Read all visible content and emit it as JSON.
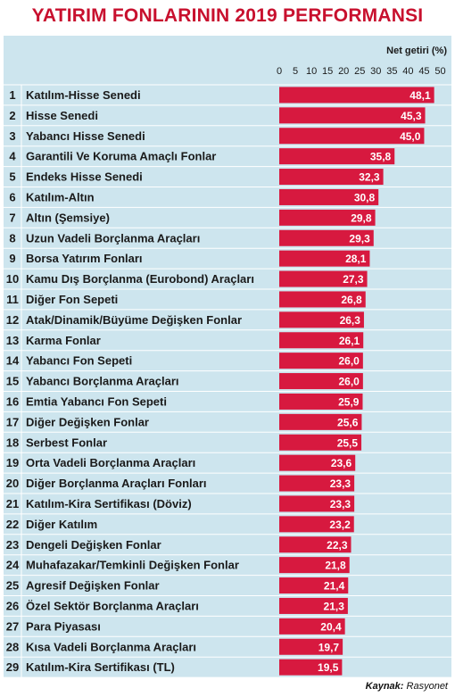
{
  "header": {
    "title": "YATIRIM FONLARININ 2019 PERFORMANSI"
  },
  "footer": {
    "source_label": "Kaynak:",
    "source_value": "Rasyonet"
  },
  "chart_data": {
    "type": "bar",
    "orientation": "horizontal",
    "title": "YATIRIM FONLARININ 2019 PERFORMANSI",
    "axis_label": "Net getiri (%)",
    "xlim": [
      0,
      50
    ],
    "ticks": [
      0,
      5,
      10,
      15,
      20,
      25,
      30,
      35,
      40,
      45,
      50
    ],
    "bar_color": "#d7193f",
    "background_color": "#cde5ee",
    "title_color": "#c8102e",
    "categories": [
      "Katılım-Hisse Senedi",
      "Hisse Senedi",
      "Yabancı Hisse Senedi",
      "Garantili Ve Koruma Amaçlı Fonlar",
      "Endeks Hisse Senedi",
      "Katılım-Altın",
      "Altın (Şemsiye)",
      "Uzun Vadeli Borçlanma Araçları",
      "Borsa Yatırım Fonları",
      "Kamu Dış Borçlanma (Eurobond) Araçları",
      "Diğer Fon Sepeti",
      "Atak/Dinamik/Büyüme Değişken Fonlar",
      "Karma Fonlar",
      "Yabancı Fon Sepeti",
      "Yabancı Borçlanma Araçları",
      "Emtia Yabancı Fon Sepeti",
      "Diğer Değişken Fonlar",
      "Serbest Fonlar",
      "Orta Vadeli Borçlanma Araçları",
      "Diğer Borçlanma Araçları Fonları",
      "Katılım-Kira Sertifikası (Döviz)",
      "Diğer Katılım",
      "Dengeli Değişken Fonlar",
      "Muhafazakar/Temkinli Değişken Fonlar",
      "Agresif Değişken Fonlar",
      "Özel Sektör Borçlanma Araçları",
      "Para Piyasası",
      "Kısa Vadeli Borçlanma Araçları",
      "Katılım-Kira Sertifikası (TL)"
    ],
    "values": [
      48.1,
      45.3,
      45.0,
      35.8,
      32.3,
      30.8,
      29.8,
      29.3,
      28.1,
      27.3,
      26.8,
      26.3,
      26.1,
      26.0,
      26.0,
      25.9,
      25.6,
      25.5,
      23.6,
      23.3,
      23.3,
      23.2,
      22.3,
      21.8,
      21.4,
      21.3,
      20.4,
      19.7,
      19.5
    ],
    "value_labels": [
      "48,1",
      "45,3",
      "45,0",
      "35,8",
      "32,3",
      "30,8",
      "29,8",
      "29,3",
      "28,1",
      "27,3",
      "26,8",
      "26,3",
      "26,1",
      "26,0",
      "26,0",
      "25,9",
      "25,6",
      "25,5",
      "23,6",
      "23,3",
      "23,3",
      "23,2",
      "22,3",
      "21,8",
      "21,4",
      "21,3",
      "20,4",
      "19,7",
      "19,5"
    ]
  }
}
